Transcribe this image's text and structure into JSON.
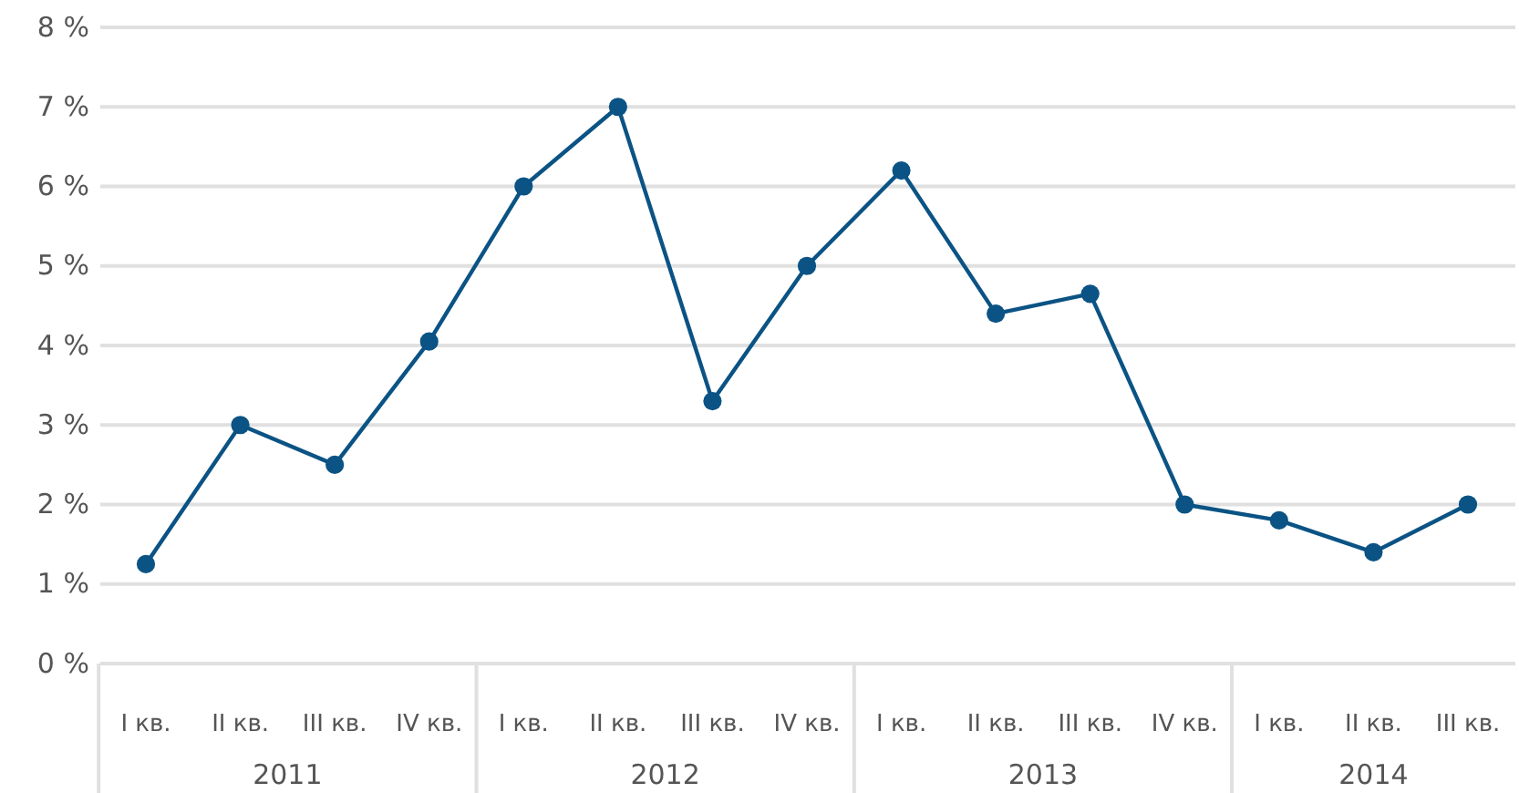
{
  "chart_data": {
    "type": "line",
    "categories": [
      "I кв.",
      "II кв.",
      "III кв.",
      "IV кв.",
      "I кв.",
      "II кв.",
      "III кв.",
      "IV кв.",
      "I кв.",
      "II кв.",
      "III кв.",
      "IV кв.",
      "I кв.",
      "II кв.",
      "III кв."
    ],
    "series": [
      {
        "color": "#0b5384",
        "values": [
          1.25,
          3.0,
          2.5,
          4.05,
          6.0,
          7.0,
          3.3,
          5.0,
          6.2,
          4.4,
          4.65,
          2.0,
          1.8,
          1.4,
          2.0
        ]
      }
    ],
    "ylim": [
      0,
      8
    ],
    "yticks": [
      {
        "value": 0,
        "label": "0 %"
      },
      {
        "value": 1,
        "label": "1 %"
      },
      {
        "value": 2,
        "label": "2 %"
      },
      {
        "value": 3,
        "label": "3 %"
      },
      {
        "value": 4,
        "label": "4 %"
      },
      {
        "value": 5,
        "label": "5 %"
      },
      {
        "value": 6,
        "label": "6 %"
      },
      {
        "value": 7,
        "label": "7 %"
      },
      {
        "value": 8,
        "label": "8 %"
      }
    ],
    "grid": "y",
    "marker": "circle",
    "line_style": "solid",
    "annotations": [
      "2011",
      "2012",
      "2013",
      "2014"
    ]
  }
}
